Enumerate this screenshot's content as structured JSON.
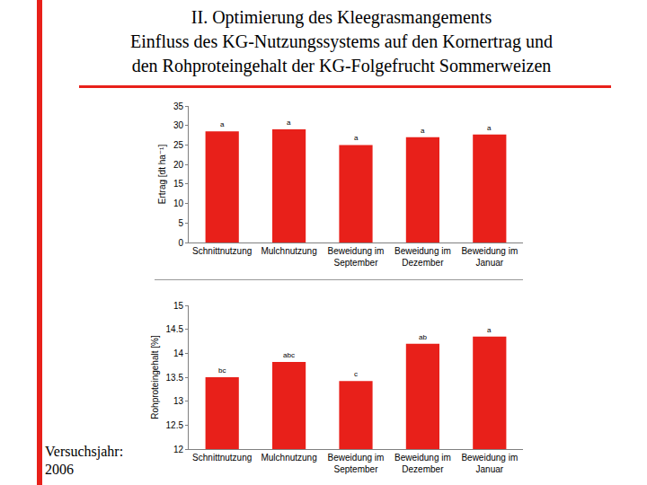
{
  "slide": {
    "title_lines": [
      "II. Optimierung des Kleegrasmangements",
      "Einfluss des KG-Nutzungssystems auf den Kornertrag und",
      "den Rohproteingehalt der KG-Folgefrucht Sommerweizen"
    ],
    "footnote": "Versuchsjahr: 2006"
  },
  "chart_data": [
    {
      "type": "bar",
      "y_label": "Ertrag [dt ha⁻¹]",
      "categories": [
        "Schnittnutzung",
        "Mulchnutzung",
        "Beweidung im September",
        "Beweidung im Dezember",
        "Beweidung im Januar"
      ],
      "values": [
        28.5,
        29,
        25,
        27,
        27.7
      ],
      "annotations": [
        "a",
        "a",
        "a",
        "a",
        "a"
      ],
      "color": "#e8201a",
      "ylim": [
        0,
        35
      ],
      "yticks": [
        0,
        5,
        10,
        15,
        20,
        25,
        30,
        35
      ],
      "grid": false
    },
    {
      "type": "bar",
      "y_label": "Rohproteingehalt [%]",
      "categories": [
        "Schnittnutzung",
        "Mulchnutzung",
        "Beweidung im September",
        "Beweidung im Dezember",
        "Beweidung im Januar"
      ],
      "values": [
        13.5,
        13.82,
        13.42,
        14.2,
        14.35
      ],
      "annotations": [
        "bc",
        "abc",
        "c",
        "ab",
        "a"
      ],
      "color": "#e8201a",
      "ylim": [
        12,
        15
      ],
      "yticks": [
        12,
        12.5,
        13,
        13.5,
        14,
        14.5,
        15
      ],
      "grid": false
    }
  ]
}
